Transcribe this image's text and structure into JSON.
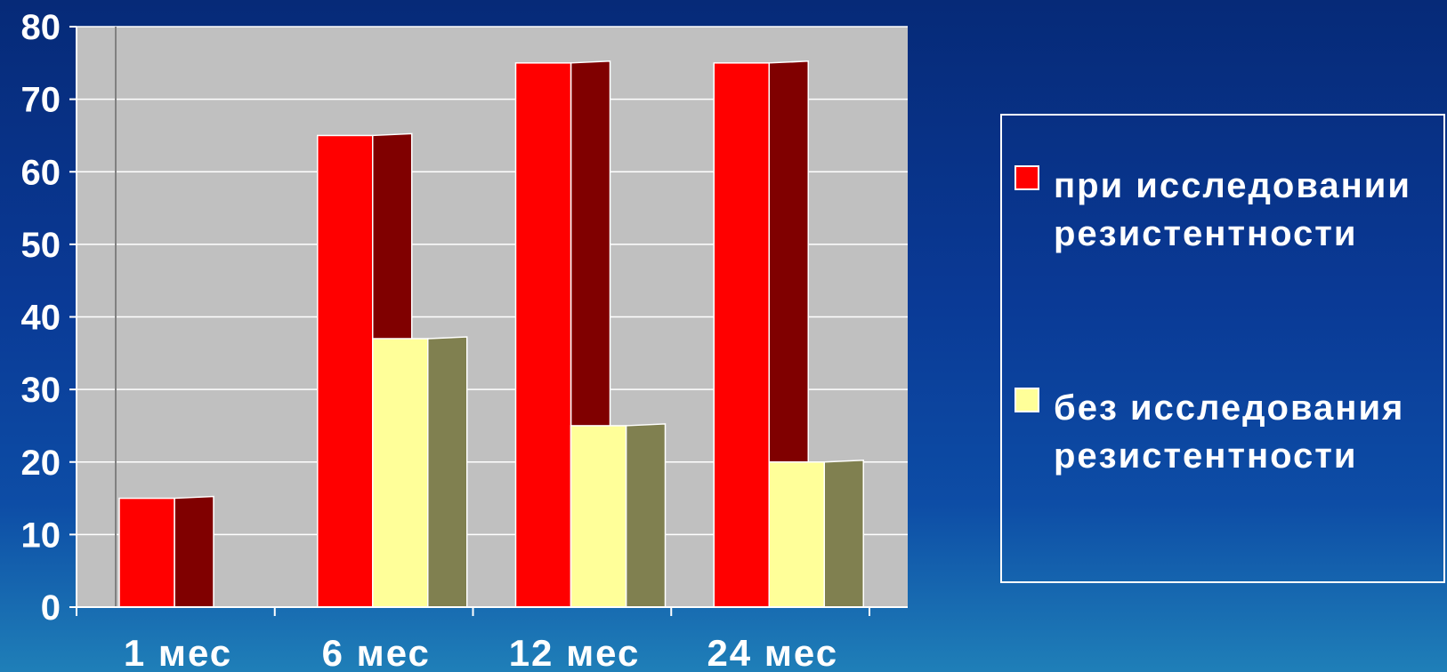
{
  "chart_data": {
    "type": "bar",
    "categories": [
      "1 мес",
      "6 мес",
      "12 мес",
      "24 мес"
    ],
    "series": [
      {
        "name": "при исследовании резистентности",
        "values": [
          15,
          65,
          75,
          75
        ],
        "color": "#ff0000",
        "side_color": "#800000"
      },
      {
        "name": "без исследования резистентности",
        "values": [
          null,
          37,
          25,
          20
        ],
        "color": "#ffff99",
        "side_color": "#808050"
      }
    ],
    "ylim": [
      0,
      80
    ],
    "yticks": [
      0,
      10,
      20,
      30,
      40,
      50,
      60,
      70,
      80
    ],
    "grid": true,
    "legend_position": "right",
    "plot_background": "#c0c0c0"
  }
}
